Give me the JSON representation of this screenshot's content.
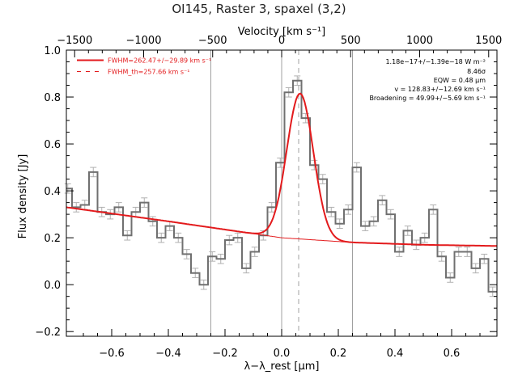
{
  "chart_data": {
    "type": "line",
    "title": "OI145, Raster 3, spaxel (3,2)",
    "top_axis_label": "Velocity [km s⁻¹]",
    "xlabel": "λ−λ_rest [μm]",
    "ylabel": "Flux density [Jy]",
    "xlim": [
      -0.76,
      0.76
    ],
    "ylim": [
      -0.22,
      1.0
    ],
    "top_xlim": [
      -1560,
      1560
    ],
    "x_ticks": [
      -0.6,
      -0.4,
      -0.2,
      0.0,
      0.2,
      0.4,
      0.6
    ],
    "x_tick_labels": [
      "−0.6",
      "−0.4",
      "−0.2",
      "0.0",
      "0.2",
      "0.4",
      "0.6"
    ],
    "y_ticks": [
      -0.2,
      0.0,
      0.2,
      0.4,
      0.6,
      0.8,
      1.0
    ],
    "y_tick_labels": [
      "−0.2",
      "0.0",
      "0.2",
      "0.4",
      "0.6",
      "0.8",
      "1.0"
    ],
    "top_ticks": [
      -1500,
      -1000,
      -500,
      0,
      500,
      1000,
      1500
    ],
    "top_tick_labels": [
      "−1500",
      "−1000",
      "−500",
      "0",
      "500",
      "1000",
      "1500"
    ],
    "reference_lines_solid": [
      -0.25,
      0.0,
      0.25
    ],
    "reference_line_dashed": 0.06,
    "grid": false,
    "colors": {
      "data": "#707070",
      "errorbar": "#b0b0b0",
      "fit": "#e31a1c",
      "ref_line": "#a0a0a0"
    },
    "legend": {
      "placement": "top-left",
      "entries": [
        {
          "label": "FWHM=262.47+/−29.89 km s⁻¹",
          "style": "solid"
        },
        {
          "label": "FWHM_th=257.66 km s⁻¹",
          "style": "dashed"
        }
      ]
    },
    "annotations": [
      "1.18e−17+/−1.39e−18 W m⁻²",
      "8.46σ",
      "EQW = 0.48 μm",
      "v = 128.83+/−12.69 km s⁻¹",
      "Broadening = 49.99+/−5.69 km s⁻¹"
    ],
    "series": [
      {
        "style": "step",
        "x": [
          -0.755,
          -0.725,
          -0.695,
          -0.665,
          -0.635,
          -0.605,
          -0.575,
          -0.545,
          -0.515,
          -0.485,
          -0.455,
          -0.425,
          -0.395,
          -0.365,
          -0.335,
          -0.305,
          -0.275,
          -0.245,
          -0.215,
          -0.185,
          -0.155,
          -0.125,
          -0.095,
          -0.065,
          -0.035,
          -0.005,
          0.025,
          0.055,
          0.085,
          0.115,
          0.145,
          0.175,
          0.205,
          0.235,
          0.265,
          0.295,
          0.325,
          0.355,
          0.385,
          0.415,
          0.445,
          0.475,
          0.505,
          0.535,
          0.565,
          0.595,
          0.625,
          0.655,
          0.685,
          0.715,
          0.745
        ],
        "y": [
          0.41,
          0.33,
          0.34,
          0.48,
          0.31,
          0.3,
          0.33,
          0.21,
          0.31,
          0.35,
          0.27,
          0.2,
          0.25,
          0.2,
          0.13,
          0.05,
          0.0,
          0.12,
          0.11,
          0.19,
          0.2,
          0.07,
          0.14,
          0.21,
          0.33,
          0.52,
          0.82,
          0.87,
          0.71,
          0.51,
          0.45,
          0.31,
          0.26,
          0.32,
          0.5,
          0.25,
          0.27,
          0.36,
          0.3,
          0.14,
          0.23,
          0.17,
          0.2,
          0.32,
          0.12,
          0.03,
          0.14,
          0.14,
          0.07,
          0.11,
          -0.03
        ],
        "error": 0.02
      },
      {
        "name": "fit",
        "style": "line",
        "model": "continuum + gaussian",
        "continuum": {
          "x": [
            -0.76,
            -0.4,
            0.0,
            0.25,
            0.5,
            0.76
          ],
          "y": [
            0.33,
            0.27,
            0.2,
            0.18,
            0.17,
            0.165
          ]
        },
        "peak_center": 0.065,
        "peak_amplitude": 0.62,
        "peak_sigma": 0.047
      }
    ]
  }
}
